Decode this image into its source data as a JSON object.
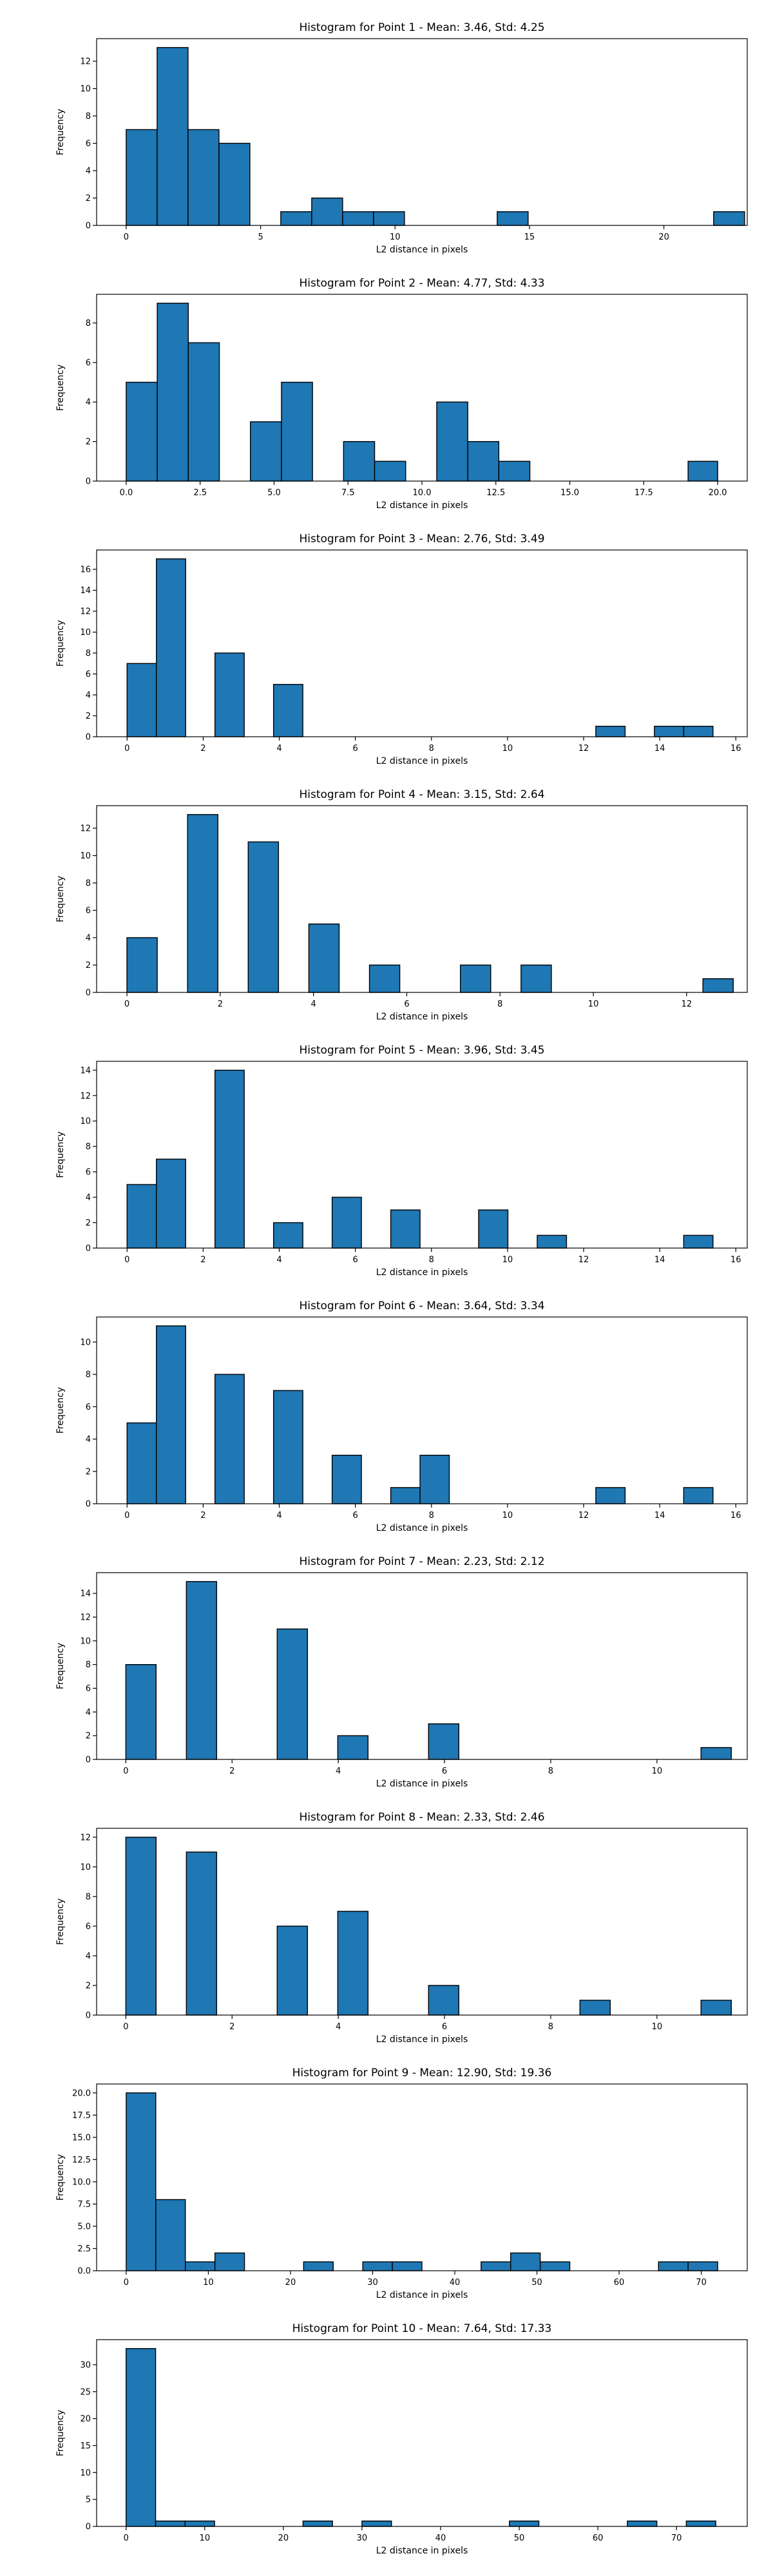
{
  "figure": {
    "bg": "#ffffff"
  },
  "colors": {
    "bar_fill": "#1f77b4",
    "bar_edge": "#000000"
  },
  "chart_data": [
    {
      "type": "bar",
      "title": "Histogram for Point 1 - Mean: 3.46, Std: 4.25",
      "xlabel": "L2 distance in pixels",
      "ylabel": "Frequency",
      "xlim": [
        -1.1,
        23.1
      ],
      "ylim": [
        0,
        13.65
      ],
      "xticks": [
        0,
        5,
        10,
        15,
        20
      ],
      "xtick_labels": [
        "0",
        "5",
        "10",
        "15",
        "20"
      ],
      "yticks": [
        0,
        2,
        4,
        6,
        8,
        10,
        12
      ],
      "ytick_labels": [
        "0",
        "2",
        "4",
        "6",
        "8",
        "10",
        "12"
      ],
      "bins": [
        {
          "x0": 0.0,
          "x1": 1.15,
          "count": 7
        },
        {
          "x0": 1.15,
          "x1": 2.3,
          "count": 13
        },
        {
          "x0": 2.3,
          "x1": 3.45,
          "count": 7
        },
        {
          "x0": 3.45,
          "x1": 4.6,
          "count": 6
        },
        {
          "x0": 5.75,
          "x1": 6.9,
          "count": 1
        },
        {
          "x0": 6.9,
          "x1": 8.05,
          "count": 2
        },
        {
          "x0": 8.05,
          "x1": 9.2,
          "count": 1
        },
        {
          "x0": 9.2,
          "x1": 10.35,
          "count": 1
        },
        {
          "x0": 13.8,
          "x1": 14.95,
          "count": 1
        },
        {
          "x0": 21.85,
          "x1": 23.0,
          "count": 1
        }
      ]
    },
    {
      "type": "bar",
      "title": "Histogram for Point 2 - Mean: 4.77, Std: 4.33",
      "xlabel": "L2 distance in pixels",
      "ylabel": "Frequency",
      "xlim": [
        -1.0,
        21.0
      ],
      "ylim": [
        0,
        9.45
      ],
      "xticks": [
        0,
        2.5,
        5,
        7.5,
        10,
        12.5,
        15,
        17.5,
        20
      ],
      "xtick_labels": [
        "0.0",
        "2.5",
        "5.0",
        "7.5",
        "10.0",
        "12.5",
        "15.0",
        "17.5",
        "20.0"
      ],
      "yticks": [
        0,
        2,
        4,
        6,
        8
      ],
      "ytick_labels": [
        "0",
        "2",
        "4",
        "6",
        "8"
      ],
      "bins": [
        {
          "x0": 0.0,
          "x1": 1.05,
          "count": 5
        },
        {
          "x0": 1.05,
          "x1": 2.1,
          "count": 9
        },
        {
          "x0": 2.1,
          "x1": 3.15,
          "count": 7
        },
        {
          "x0": 4.2,
          "x1": 5.25,
          "count": 3
        },
        {
          "x0": 5.25,
          "x1": 6.3,
          "count": 5
        },
        {
          "x0": 7.35,
          "x1": 8.4,
          "count": 2
        },
        {
          "x0": 8.4,
          "x1": 9.45,
          "count": 1
        },
        {
          "x0": 10.5,
          "x1": 11.55,
          "count": 4
        },
        {
          "x0": 11.55,
          "x1": 12.6,
          "count": 2
        },
        {
          "x0": 12.6,
          "x1": 13.65,
          "count": 1
        },
        {
          "x0": 19.0,
          "x1": 20.0,
          "count": 1
        }
      ]
    },
    {
      "type": "bar",
      "title": "Histogram for Point 3 - Mean: 2.76, Std: 3.49",
      "xlabel": "L2 distance in pixels",
      "ylabel": "Frequency",
      "xlim": [
        -0.8,
        16.3
      ],
      "ylim": [
        0,
        17.85
      ],
      "xticks": [
        0,
        2,
        4,
        6,
        8,
        10,
        12,
        14,
        16
      ],
      "xtick_labels": [
        "0",
        "2",
        "4",
        "6",
        "8",
        "10",
        "12",
        "14",
        "16"
      ],
      "yticks": [
        0,
        2,
        4,
        6,
        8,
        10,
        12,
        14,
        16
      ],
      "ytick_labels": [
        "0",
        "2",
        "4",
        "6",
        "8",
        "10",
        "12",
        "14",
        "16"
      ],
      "bins": [
        {
          "x0": 0.0,
          "x1": 0.77,
          "count": 7
        },
        {
          "x0": 0.77,
          "x1": 1.54,
          "count": 17
        },
        {
          "x0": 2.31,
          "x1": 3.08,
          "count": 8
        },
        {
          "x0": 3.85,
          "x1": 4.62,
          "count": 5
        },
        {
          "x0": 12.32,
          "x1": 13.09,
          "count": 1
        },
        {
          "x0": 13.86,
          "x1": 14.63,
          "count": 1
        },
        {
          "x0": 14.63,
          "x1": 15.4,
          "count": 1
        }
      ]
    },
    {
      "type": "bar",
      "title": "Histogram for Point 4 - Mean: 3.15, Std: 2.64",
      "xlabel": "L2 distance in pixels",
      "ylabel": "Frequency",
      "xlim": [
        -0.65,
        13.3
      ],
      "ylim": [
        0,
        13.65
      ],
      "xticks": [
        0,
        2,
        4,
        6,
        8,
        10,
        12
      ],
      "xtick_labels": [
        "0",
        "2",
        "4",
        "6",
        "8",
        "10",
        "12"
      ],
      "yticks": [
        0,
        2,
        4,
        6,
        8,
        10,
        12
      ],
      "ytick_labels": [
        "0",
        "2",
        "4",
        "6",
        "8",
        "10",
        "12"
      ],
      "bins": [
        {
          "x0": 0.0,
          "x1": 0.65,
          "count": 4
        },
        {
          "x0": 1.3,
          "x1": 1.95,
          "count": 13
        },
        {
          "x0": 2.6,
          "x1": 3.25,
          "count": 11
        },
        {
          "x0": 3.9,
          "x1": 4.55,
          "count": 5
        },
        {
          "x0": 5.2,
          "x1": 5.85,
          "count": 2
        },
        {
          "x0": 7.15,
          "x1": 7.8,
          "count": 2
        },
        {
          "x0": 8.45,
          "x1": 9.1,
          "count": 2
        },
        {
          "x0": 12.35,
          "x1": 13.0,
          "count": 1
        }
      ]
    },
    {
      "type": "bar",
      "title": "Histogram for Point 5 - Mean: 3.96, Std: 3.45",
      "xlabel": "L2 distance in pixels",
      "ylabel": "Frequency",
      "xlim": [
        -0.8,
        16.3
      ],
      "ylim": [
        0,
        14.7
      ],
      "xticks": [
        0,
        2,
        4,
        6,
        8,
        10,
        12,
        14,
        16
      ],
      "xtick_labels": [
        "0",
        "2",
        "4",
        "6",
        "8",
        "10",
        "12",
        "14",
        "16"
      ],
      "yticks": [
        0,
        2,
        4,
        6,
        8,
        10,
        12,
        14
      ],
      "ytick_labels": [
        "0",
        "2",
        "4",
        "6",
        "8",
        "10",
        "12",
        "14"
      ],
      "bins": [
        {
          "x0": 0.0,
          "x1": 0.77,
          "count": 5
        },
        {
          "x0": 0.77,
          "x1": 1.54,
          "count": 7
        },
        {
          "x0": 2.31,
          "x1": 3.08,
          "count": 14
        },
        {
          "x0": 3.85,
          "x1": 4.62,
          "count": 2
        },
        {
          "x0": 5.39,
          "x1": 6.16,
          "count": 4
        },
        {
          "x0": 6.93,
          "x1": 7.7,
          "count": 3
        },
        {
          "x0": 9.24,
          "x1": 10.01,
          "count": 3
        },
        {
          "x0": 10.78,
          "x1": 11.55,
          "count": 1
        },
        {
          "x0": 14.63,
          "x1": 15.4,
          "count": 1
        }
      ]
    },
    {
      "type": "bar",
      "title": "Histogram for Point 6 - Mean: 3.64, Std: 3.34",
      "xlabel": "L2 distance in pixels",
      "ylabel": "Frequency",
      "xlim": [
        -0.8,
        16.3
      ],
      "ylim": [
        0,
        11.55
      ],
      "xticks": [
        0,
        2,
        4,
        6,
        8,
        10,
        12,
        14,
        16
      ],
      "xtick_labels": [
        "0",
        "2",
        "4",
        "6",
        "8",
        "10",
        "12",
        "14",
        "16"
      ],
      "yticks": [
        0,
        2,
        4,
        6,
        8,
        10
      ],
      "ytick_labels": [
        "0",
        "2",
        "4",
        "6",
        "8",
        "10"
      ],
      "bins": [
        {
          "x0": 0.0,
          "x1": 0.77,
          "count": 5
        },
        {
          "x0": 0.77,
          "x1": 1.54,
          "count": 11
        },
        {
          "x0": 2.31,
          "x1": 3.08,
          "count": 8
        },
        {
          "x0": 3.85,
          "x1": 4.62,
          "count": 7
        },
        {
          "x0": 5.39,
          "x1": 6.16,
          "count": 3
        },
        {
          "x0": 6.93,
          "x1": 7.7,
          "count": 1
        },
        {
          "x0": 7.7,
          "x1": 8.47,
          "count": 3
        },
        {
          "x0": 12.32,
          "x1": 13.09,
          "count": 1
        },
        {
          "x0": 14.63,
          "x1": 15.4,
          "count": 1
        }
      ]
    },
    {
      "type": "bar",
      "title": "Histogram for Point 7 - Mean: 2.23, Std: 2.12",
      "xlabel": "L2 distance in pixels",
      "ylabel": "Frequency",
      "xlim": [
        -0.55,
        11.7
      ],
      "ylim": [
        0,
        15.75
      ],
      "xticks": [
        0,
        2,
        4,
        6,
        8,
        10
      ],
      "xtick_labels": [
        "0",
        "2",
        "4",
        "6",
        "8",
        "10"
      ],
      "yticks": [
        0,
        2,
        4,
        6,
        8,
        10,
        12,
        14
      ],
      "ytick_labels": [
        "0",
        "2",
        "4",
        "6",
        "8",
        "10",
        "12",
        "14"
      ],
      "bins": [
        {
          "x0": 0.0,
          "x1": 0.57,
          "count": 8
        },
        {
          "x0": 1.14,
          "x1": 1.71,
          "count": 15
        },
        {
          "x0": 2.85,
          "x1": 3.42,
          "count": 11
        },
        {
          "x0": 3.99,
          "x1": 4.56,
          "count": 2
        },
        {
          "x0": 5.7,
          "x1": 6.27,
          "count": 3
        },
        {
          "x0": 10.83,
          "x1": 11.4,
          "count": 1
        }
      ]
    },
    {
      "type": "bar",
      "title": "Histogram for Point 8 - Mean: 2.33, Std: 2.46",
      "xlabel": "L2 distance in pixels",
      "ylabel": "Frequency",
      "xlim": [
        -0.55,
        11.7
      ],
      "ylim": [
        0,
        12.6
      ],
      "xticks": [
        0,
        2,
        4,
        6,
        8,
        10
      ],
      "xtick_labels": [
        "0",
        "2",
        "4",
        "6",
        "8",
        "10"
      ],
      "yticks": [
        0,
        2,
        4,
        6,
        8,
        10,
        12
      ],
      "ytick_labels": [
        "0",
        "2",
        "4",
        "6",
        "8",
        "10",
        "12"
      ],
      "bins": [
        {
          "x0": 0.0,
          "x1": 0.57,
          "count": 12
        },
        {
          "x0": 1.14,
          "x1": 1.71,
          "count": 11
        },
        {
          "x0": 2.85,
          "x1": 3.42,
          "count": 6
        },
        {
          "x0": 3.99,
          "x1": 4.56,
          "count": 7
        },
        {
          "x0": 5.7,
          "x1": 6.27,
          "count": 2
        },
        {
          "x0": 8.55,
          "x1": 9.12,
          "count": 1
        },
        {
          "x0": 10.83,
          "x1": 11.4,
          "count": 1
        }
      ]
    },
    {
      "type": "bar",
      "title": "Histogram for Point 9 - Mean: 12.90, Std: 19.36",
      "xlabel": "L2 distance in pixels",
      "ylabel": "Frequency",
      "xlim": [
        -3.6,
        75.6
      ],
      "ylim": [
        0,
        21.0
      ],
      "xticks": [
        0,
        10,
        20,
        30,
        40,
        50,
        60,
        70
      ],
      "xtick_labels": [
        "0",
        "10",
        "20",
        "30",
        "40",
        "50",
        "60",
        "70"
      ],
      "yticks": [
        0,
        2.5,
        5,
        7.5,
        10,
        12.5,
        15,
        17.5,
        20
      ],
      "ytick_labels": [
        "0.0",
        "2.5",
        "5.0",
        "7.5",
        "10.0",
        "12.5",
        "15.0",
        "17.5",
        "20.0"
      ],
      "bins": [
        {
          "x0": 0.0,
          "x1": 3.6,
          "count": 20
        },
        {
          "x0": 3.6,
          "x1": 7.2,
          "count": 8
        },
        {
          "x0": 7.2,
          "x1": 10.8,
          "count": 1
        },
        {
          "x0": 10.8,
          "x1": 14.4,
          "count": 2
        },
        {
          "x0": 21.6,
          "x1": 25.2,
          "count": 1
        },
        {
          "x0": 28.8,
          "x1": 32.4,
          "count": 1
        },
        {
          "x0": 32.4,
          "x1": 36.0,
          "count": 1
        },
        {
          "x0": 43.2,
          "x1": 46.8,
          "count": 1
        },
        {
          "x0": 46.8,
          "x1": 50.4,
          "count": 2
        },
        {
          "x0": 50.4,
          "x1": 54.0,
          "count": 1
        },
        {
          "x0": 64.8,
          "x1": 68.4,
          "count": 1
        },
        {
          "x0": 68.4,
          "x1": 72.0,
          "count": 1
        }
      ]
    },
    {
      "type": "bar",
      "title": "Histogram for Point 10 - Mean: 7.64, Std: 17.33",
      "xlabel": "L2 distance in pixels",
      "ylabel": "Frequency",
      "xlim": [
        -3.75,
        79.0
      ],
      "ylim": [
        0,
        34.65
      ],
      "xticks": [
        0,
        10,
        20,
        30,
        40,
        50,
        60,
        70
      ],
      "xtick_labels": [
        "0",
        "10",
        "20",
        "30",
        "40",
        "50",
        "60",
        "70"
      ],
      "yticks": [
        0,
        5,
        10,
        15,
        20,
        25,
        30
      ],
      "ytick_labels": [
        "0",
        "5",
        "10",
        "15",
        "20",
        "25",
        "30"
      ],
      "bins": [
        {
          "x0": 0.0,
          "x1": 3.75,
          "count": 33
        },
        {
          "x0": 3.75,
          "x1": 7.5,
          "count": 1
        },
        {
          "x0": 7.5,
          "x1": 11.25,
          "count": 1
        },
        {
          "x0": 22.5,
          "x1": 26.25,
          "count": 1
        },
        {
          "x0": 30.0,
          "x1": 33.75,
          "count": 1
        },
        {
          "x0": 48.75,
          "x1": 52.5,
          "count": 1
        },
        {
          "x0": 63.75,
          "x1": 67.5,
          "count": 1
        },
        {
          "x0": 71.25,
          "x1": 75.0,
          "count": 1
        }
      ]
    }
  ]
}
